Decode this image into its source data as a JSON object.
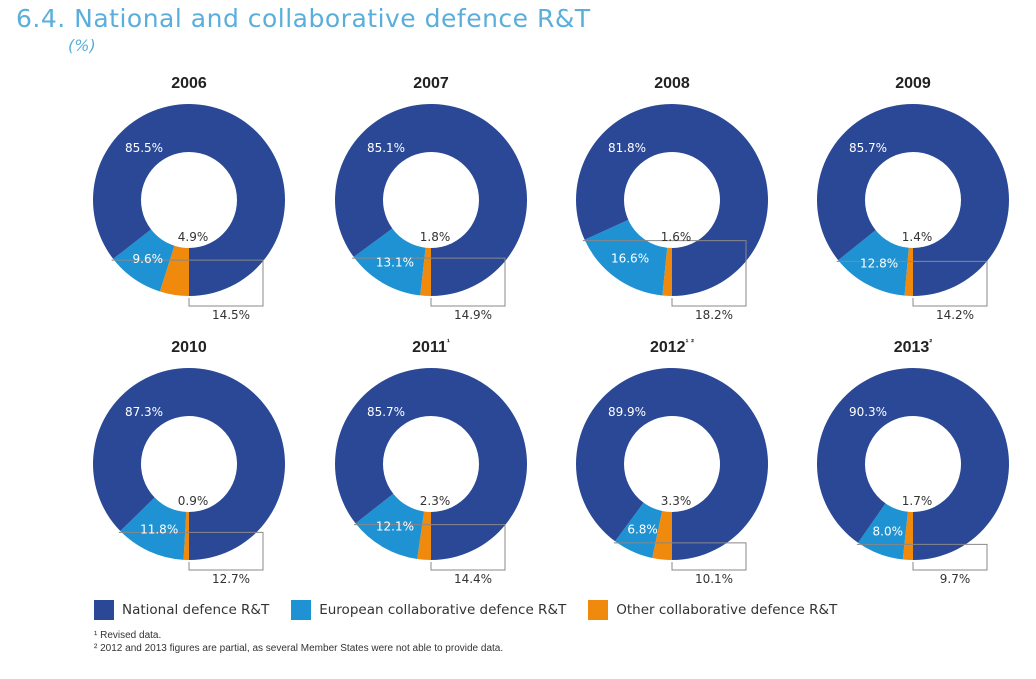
{
  "header": {
    "title": "6.4. National and collaborative defence R&T",
    "subtitle": "(%)"
  },
  "colors": {
    "national": "#2a4896",
    "european": "#1e92d2",
    "other": "#f08a0c",
    "bracket": "#888888"
  },
  "legend": [
    {
      "label": "National defence R&T",
      "color": "#2a4896"
    },
    {
      "label": "European collaborative defence R&T",
      "color": "#1e92d2"
    },
    {
      "label": "Other collaborative defence R&T",
      "color": "#f08a0c"
    }
  ],
  "footnotes": [
    "¹ Revised data.",
    "² 2012 and 2013 figures are partial, as several Member States were not able to provide data."
  ],
  "chart_data": [
    {
      "type": "pie",
      "title": "2006",
      "categories": [
        "National defence R&T",
        "European collaborative defence R&T",
        "Other collaborative defence R&T"
      ],
      "values": [
        85.5,
        9.6,
        4.9
      ],
      "labels": [
        "85.5%",
        "9.6%",
        "4.9%"
      ],
      "total_collaborative": "14.5%"
    },
    {
      "type": "pie",
      "title": "2007",
      "categories": [
        "National defence R&T",
        "European collaborative defence R&T",
        "Other collaborative defence R&T"
      ],
      "values": [
        85.1,
        13.1,
        1.8
      ],
      "labels": [
        "85.1%",
        "13.1%",
        "1.8%"
      ],
      "total_collaborative": "14.9%"
    },
    {
      "type": "pie",
      "title": "2008",
      "categories": [
        "National defence R&T",
        "European collaborative defence R&T",
        "Other collaborative defence R&T"
      ],
      "values": [
        81.8,
        16.6,
        1.6
      ],
      "labels": [
        "81.8%",
        "16.6%",
        "1.6%"
      ],
      "total_collaborative": "18.2%"
    },
    {
      "type": "pie",
      "title": "2009",
      "categories": [
        "National defence R&T",
        "European collaborative defence R&T",
        "Other collaborative defence R&T"
      ],
      "values": [
        85.7,
        12.8,
        1.4
      ],
      "labels": [
        "85.7%",
        "12.8%",
        "1.4%"
      ],
      "total_collaborative": "14.2%"
    },
    {
      "type": "pie",
      "title": "2010",
      "categories": [
        "National defence R&T",
        "European collaborative defence R&T",
        "Other collaborative defence R&T"
      ],
      "values": [
        87.3,
        11.8,
        0.9
      ],
      "labels": [
        "87.3%",
        "11.8%",
        "0.9%"
      ],
      "total_collaborative": "12.7%"
    },
    {
      "type": "pie",
      "title": "2011¹",
      "categories": [
        "National defence R&T",
        "European collaborative defence R&T",
        "Other collaborative defence R&T"
      ],
      "values": [
        85.7,
        12.1,
        2.3
      ],
      "labels": [
        "85.7%",
        "12.1%",
        "2.3%"
      ],
      "total_collaborative": "14.4%"
    },
    {
      "type": "pie",
      "title": "2012¹ ²",
      "categories": [
        "National defence R&T",
        "European collaborative defence R&T",
        "Other collaborative defence R&T"
      ],
      "values": [
        89.9,
        6.8,
        3.3
      ],
      "labels": [
        "89.9%",
        "6.8%",
        "3.3%"
      ],
      "total_collaborative": "10.1%"
    },
    {
      "type": "pie",
      "title": "2013²",
      "categories": [
        "National defence R&T",
        "European collaborative defence R&T",
        "Other collaborative defence R&T"
      ],
      "values": [
        90.3,
        8.0,
        1.7
      ],
      "labels": [
        "90.3%",
        "8.0%",
        "1.7%"
      ],
      "total_collaborative": "9.7%"
    }
  ]
}
